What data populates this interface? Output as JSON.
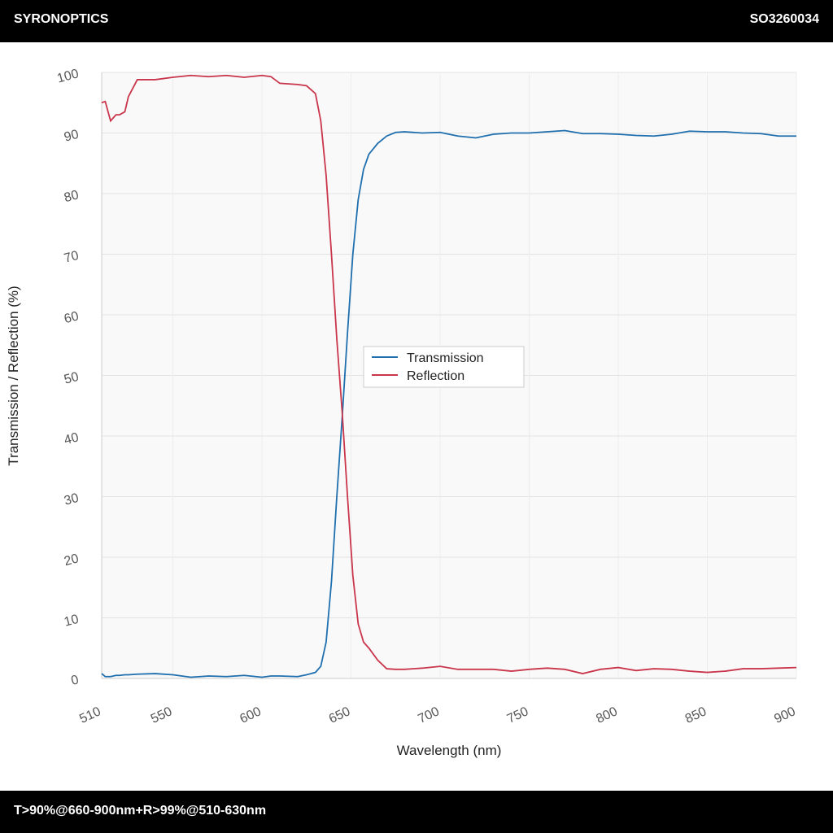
{
  "header": {
    "brand": "SYRONOPTICS",
    "code": "SO3260034"
  },
  "footer": {
    "spec": "T>90%@660-900nm+R>99%@510-630nm"
  },
  "chart_data": {
    "type": "line",
    "xlabel": "Wavelength (nm)",
    "ylabel": "Transmission / Reflection (%)",
    "x": [
      510,
      512,
      515,
      518,
      520,
      523,
      525,
      530,
      540,
      550,
      560,
      570,
      580,
      590,
      600,
      605,
      610,
      620,
      625,
      630,
      633,
      636,
      639,
      642,
      645,
      648,
      651,
      654,
      657,
      660,
      665,
      670,
      675,
      680,
      690,
      700,
      710,
      720,
      730,
      740,
      750,
      760,
      770,
      780,
      790,
      800,
      810,
      820,
      830,
      840,
      850,
      860,
      870,
      880,
      890,
      900
    ],
    "series": [
      {
        "name": "Transmission",
        "color": "#1f6fae",
        "values": [
          0.8,
          0.3,
          0.3,
          0.5,
          0.5,
          0.6,
          0.6,
          0.7,
          0.8,
          0.6,
          0.2,
          0.4,
          0.3,
          0.5,
          0.2,
          0.4,
          0.4,
          0.3,
          0.6,
          1,
          2,
          6,
          16,
          30,
          43,
          57,
          70,
          79,
          84,
          86.5,
          88.3,
          89.5,
          90.1,
          90.2,
          90,
          90.1,
          89.5,
          89.2,
          89.8,
          90,
          90,
          90.2,
          90.4,
          89.9,
          89.9,
          89.8,
          89.6,
          89.5,
          89.8,
          90.3,
          90.2,
          90.2,
          90,
          89.9,
          89.5,
          89.5
        ]
      },
      {
        "name": "Reflection",
        "color": "#c9354a",
        "values": [
          95,
          95.2,
          92,
          93,
          93,
          93.5,
          96,
          98.8,
          98.8,
          99.2,
          99.5,
          99.3,
          99.5,
          99.2,
          99.5,
          99.3,
          98.2,
          98,
          97.8,
          96.5,
          92,
          83,
          70,
          56,
          44,
          30,
          17,
          9,
          6,
          5,
          3,
          1.6,
          1.5,
          1.5,
          1.7,
          2,
          1.5,
          1.5,
          1.5,
          1.2,
          1.5,
          1.7,
          1.5,
          0.8,
          1.5,
          1.8,
          1.3,
          1.6,
          1.5,
          1.2,
          1,
          1.2,
          1.6,
          1.6,
          1.7,
          1.8
        ]
      }
    ],
    "xlim": [
      510,
      900
    ],
    "xticks": [
      510,
      550,
      600,
      650,
      700,
      750,
      800,
      850,
      900
    ],
    "ylim": [
      0,
      100
    ],
    "yticks": [
      0,
      10,
      20,
      30,
      40,
      50,
      60,
      70,
      80,
      90,
      100
    ],
    "grid": true,
    "legend": "center"
  }
}
